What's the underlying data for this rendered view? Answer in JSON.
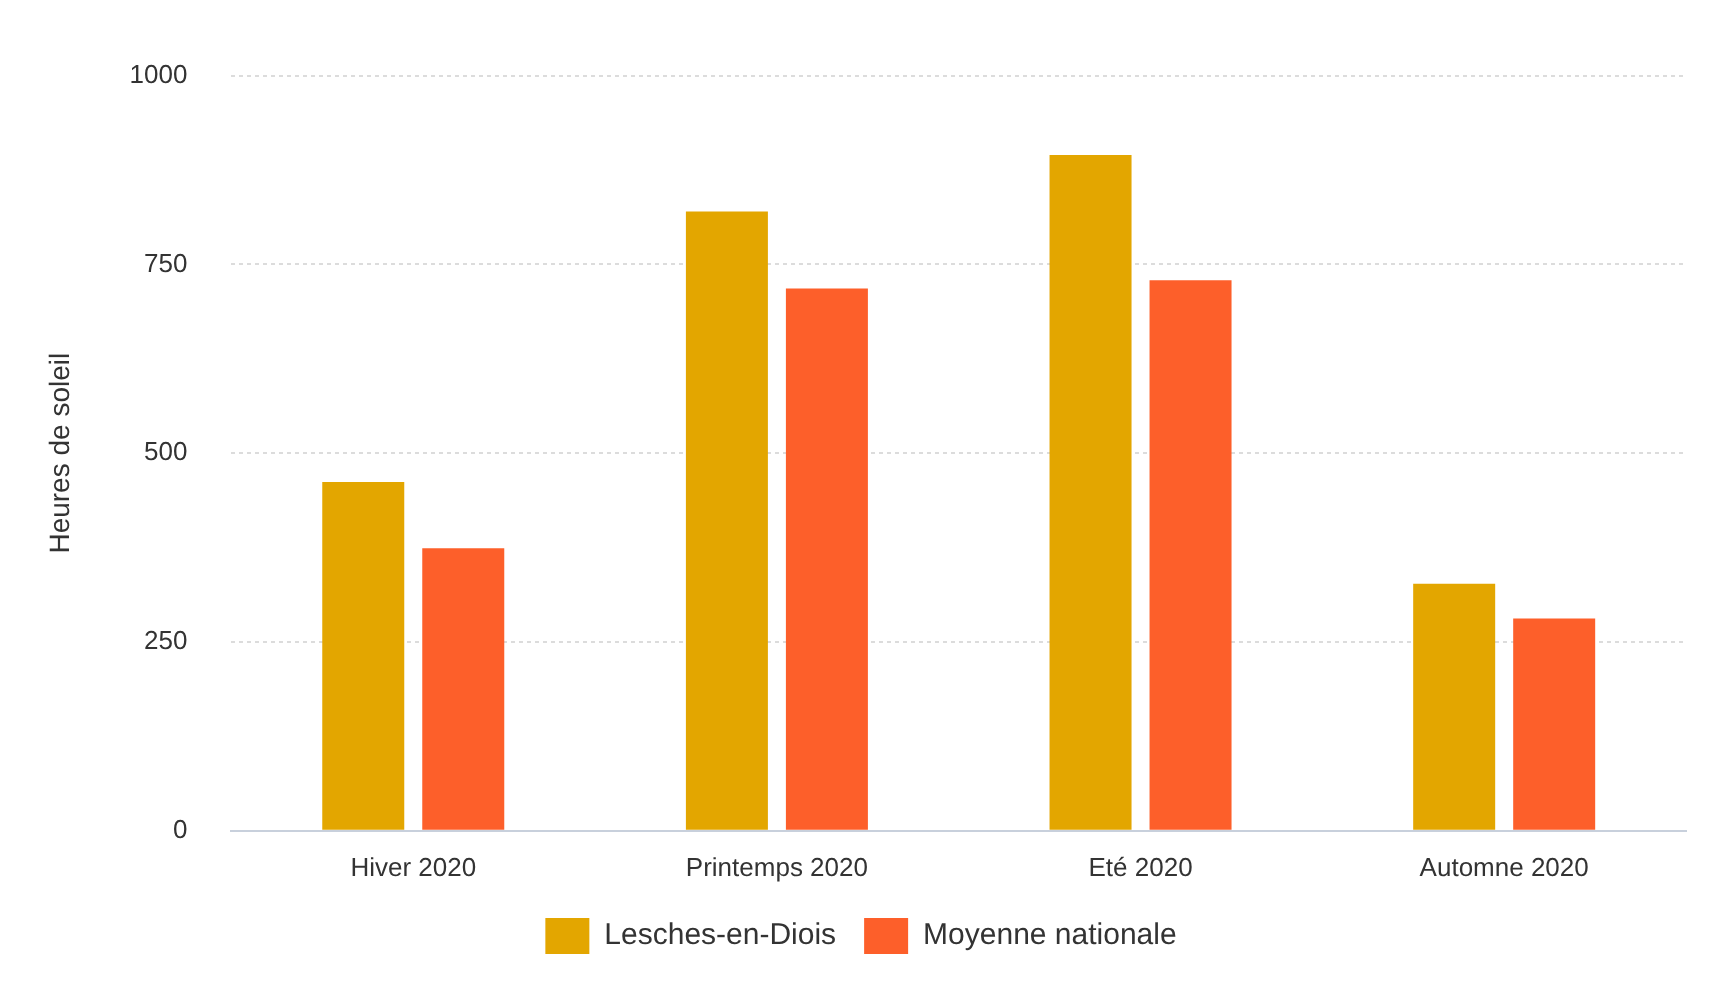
{
  "chart_data": {
    "type": "bar",
    "ylabel": "Heures de soleil",
    "categories": [
      "Hiver 2020",
      "Printemps 2020",
      "Eté 2020",
      "Automne 2020"
    ],
    "series": [
      {
        "name": "Lesches-en-Diois",
        "color": "#e3a600",
        "values": [
          462,
          820,
          895,
          327
        ]
      },
      {
        "name": "Moyenne nationale",
        "color": "#fd5f2a",
        "values": [
          374,
          718,
          729,
          281
        ]
      }
    ],
    "ylim": [
      0,
      1000
    ],
    "yticks": [
      0,
      250,
      500,
      750,
      1000
    ],
    "grid": "y",
    "legend": "bottom"
  }
}
